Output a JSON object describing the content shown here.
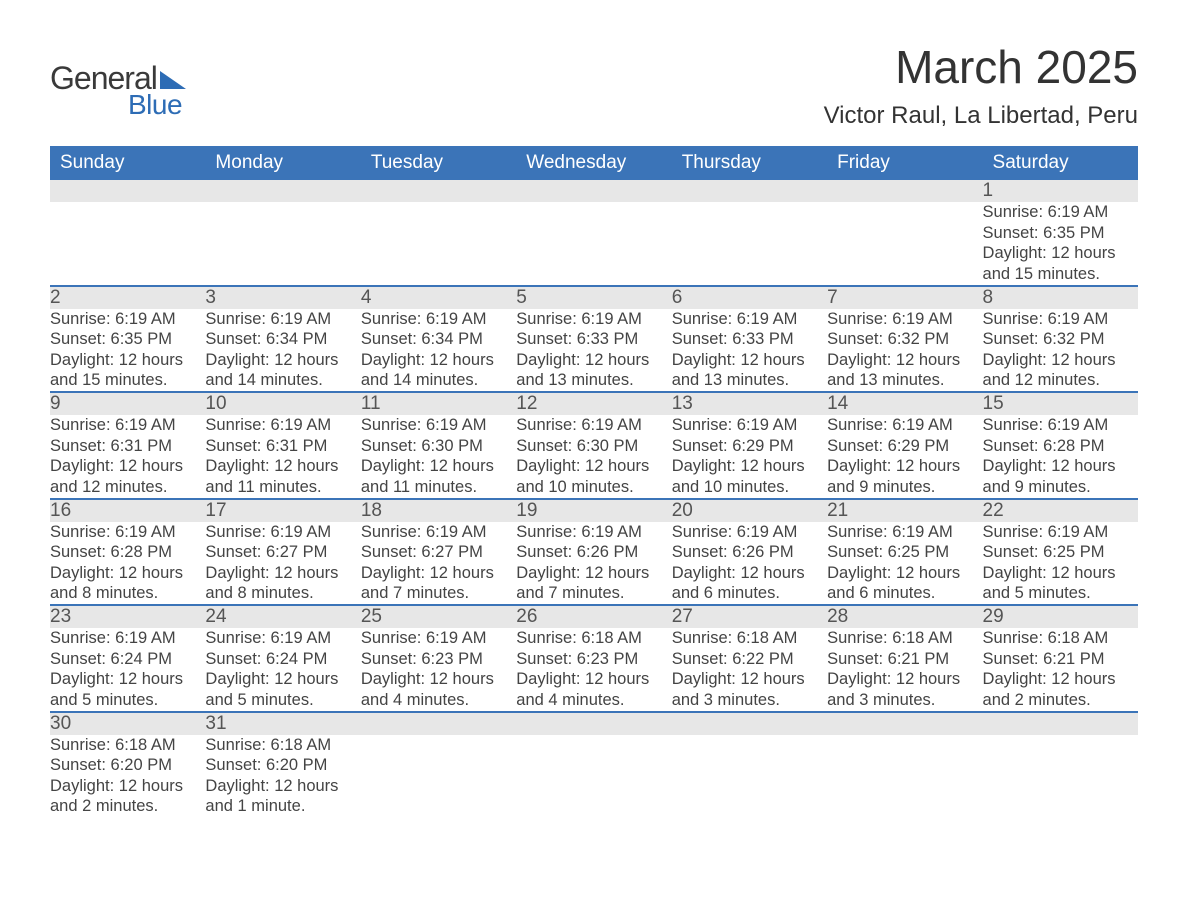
{
  "logo": {
    "text1": "General",
    "text2": "Blue"
  },
  "title": "March 2025",
  "location": "Victor Raul, La Libertad, Peru",
  "day_headers": [
    "Sunday",
    "Monday",
    "Tuesday",
    "Wednesday",
    "Thursday",
    "Friday",
    "Saturday"
  ],
  "colors": {
    "header_bg": "#3b74b8",
    "header_text": "#ffffff",
    "daynum_bg": "#e7e7e7",
    "row_divider": "#3b74b8",
    "body_text": "#444444",
    "logo_accent": "#2d6cb5"
  },
  "labels": {
    "sunrise": "Sunrise:",
    "sunset": "Sunset:",
    "daylight": "Daylight:"
  },
  "weeks": [
    [
      null,
      null,
      null,
      null,
      null,
      null,
      {
        "n": "1",
        "sr": "6:19 AM",
        "ss": "6:35 PM",
        "dl": "12 hours and 15 minutes."
      }
    ],
    [
      {
        "n": "2",
        "sr": "6:19 AM",
        "ss": "6:35 PM",
        "dl": "12 hours and 15 minutes."
      },
      {
        "n": "3",
        "sr": "6:19 AM",
        "ss": "6:34 PM",
        "dl": "12 hours and 14 minutes."
      },
      {
        "n": "4",
        "sr": "6:19 AM",
        "ss": "6:34 PM",
        "dl": "12 hours and 14 minutes."
      },
      {
        "n": "5",
        "sr": "6:19 AM",
        "ss": "6:33 PM",
        "dl": "12 hours and 13 minutes."
      },
      {
        "n": "6",
        "sr": "6:19 AM",
        "ss": "6:33 PM",
        "dl": "12 hours and 13 minutes."
      },
      {
        "n": "7",
        "sr": "6:19 AM",
        "ss": "6:32 PM",
        "dl": "12 hours and 13 minutes."
      },
      {
        "n": "8",
        "sr": "6:19 AM",
        "ss": "6:32 PM",
        "dl": "12 hours and 12 minutes."
      }
    ],
    [
      {
        "n": "9",
        "sr": "6:19 AM",
        "ss": "6:31 PM",
        "dl": "12 hours and 12 minutes."
      },
      {
        "n": "10",
        "sr": "6:19 AM",
        "ss": "6:31 PM",
        "dl": "12 hours and 11 minutes."
      },
      {
        "n": "11",
        "sr": "6:19 AM",
        "ss": "6:30 PM",
        "dl": "12 hours and 11 minutes."
      },
      {
        "n": "12",
        "sr": "6:19 AM",
        "ss": "6:30 PM",
        "dl": "12 hours and 10 minutes."
      },
      {
        "n": "13",
        "sr": "6:19 AM",
        "ss": "6:29 PM",
        "dl": "12 hours and 10 minutes."
      },
      {
        "n": "14",
        "sr": "6:19 AM",
        "ss": "6:29 PM",
        "dl": "12 hours and 9 minutes."
      },
      {
        "n": "15",
        "sr": "6:19 AM",
        "ss": "6:28 PM",
        "dl": "12 hours and 9 minutes."
      }
    ],
    [
      {
        "n": "16",
        "sr": "6:19 AM",
        "ss": "6:28 PM",
        "dl": "12 hours and 8 minutes."
      },
      {
        "n": "17",
        "sr": "6:19 AM",
        "ss": "6:27 PM",
        "dl": "12 hours and 8 minutes."
      },
      {
        "n": "18",
        "sr": "6:19 AM",
        "ss": "6:27 PM",
        "dl": "12 hours and 7 minutes."
      },
      {
        "n": "19",
        "sr": "6:19 AM",
        "ss": "6:26 PM",
        "dl": "12 hours and 7 minutes."
      },
      {
        "n": "20",
        "sr": "6:19 AM",
        "ss": "6:26 PM",
        "dl": "12 hours and 6 minutes."
      },
      {
        "n": "21",
        "sr": "6:19 AM",
        "ss": "6:25 PM",
        "dl": "12 hours and 6 minutes."
      },
      {
        "n": "22",
        "sr": "6:19 AM",
        "ss": "6:25 PM",
        "dl": "12 hours and 5 minutes."
      }
    ],
    [
      {
        "n": "23",
        "sr": "6:19 AM",
        "ss": "6:24 PM",
        "dl": "12 hours and 5 minutes."
      },
      {
        "n": "24",
        "sr": "6:19 AM",
        "ss": "6:24 PM",
        "dl": "12 hours and 5 minutes."
      },
      {
        "n": "25",
        "sr": "6:19 AM",
        "ss": "6:23 PM",
        "dl": "12 hours and 4 minutes."
      },
      {
        "n": "26",
        "sr": "6:18 AM",
        "ss": "6:23 PM",
        "dl": "12 hours and 4 minutes."
      },
      {
        "n": "27",
        "sr": "6:18 AM",
        "ss": "6:22 PM",
        "dl": "12 hours and 3 minutes."
      },
      {
        "n": "28",
        "sr": "6:18 AM",
        "ss": "6:21 PM",
        "dl": "12 hours and 3 minutes."
      },
      {
        "n": "29",
        "sr": "6:18 AM",
        "ss": "6:21 PM",
        "dl": "12 hours and 2 minutes."
      }
    ],
    [
      {
        "n": "30",
        "sr": "6:18 AM",
        "ss": "6:20 PM",
        "dl": "12 hours and 2 minutes."
      },
      {
        "n": "31",
        "sr": "6:18 AM",
        "ss": "6:20 PM",
        "dl": "12 hours and 1 minute."
      },
      null,
      null,
      null,
      null,
      null
    ]
  ]
}
